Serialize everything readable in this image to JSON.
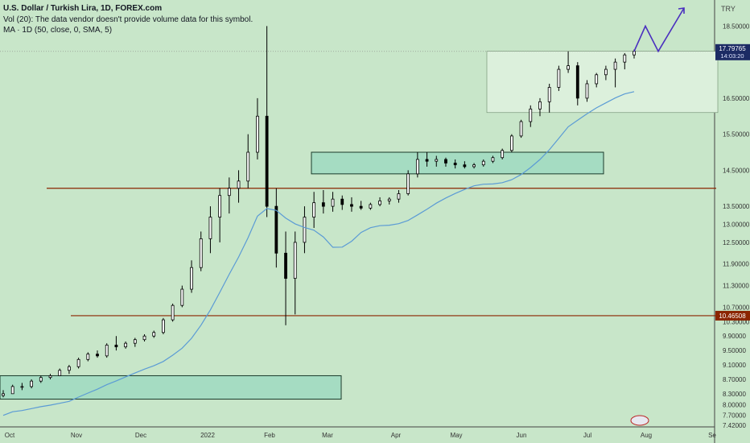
{
  "legend": {
    "title": "U.S. Dollar / Turkish Lira, 1D, FOREX.com",
    "volume": "Vol (20): The data vendor doesn't provide volume data for this symbol.",
    "ma": "MA · 1D (50, close, 0, SMA, 5)"
  },
  "currency": "TRY",
  "colors": {
    "background": "#c8e6c9",
    "candle": "#000000",
    "ma_line": "#5b9bd5",
    "support_line": "#8b2500",
    "box_fill": "#a5dcc2",
    "box_light_fill": "#dcf0dc",
    "projection": "#4a2fbf",
    "price_tag_current": "#1c2b64",
    "price_tag_level": "#8b2500"
  },
  "chart_data": {
    "type": "candlestick",
    "ylim": [
      7.38,
      19.0
    ],
    "x_labels": [
      "Oct",
      "Nov",
      "Dec",
      "2022",
      "Feb",
      "Mar",
      "Apr",
      "May",
      "Jun",
      "Jul",
      "Aug",
      "Se"
    ],
    "y_ticks": [
      "18.50000",
      "16.50000",
      "15.50000",
      "14.50000",
      "13.50000",
      "13.00000",
      "12.50000",
      "11.90000",
      "11.30000",
      "10.70000",
      "10.30000",
      "9.90000",
      "9.50000",
      "9.10000",
      "8.70000",
      "8.30000",
      "8.00000",
      "7.70000",
      "7.42000"
    ],
    "last_price": "17.79765",
    "countdown": "14:03:20",
    "level_price": "10.46508",
    "levels": [
      14.0,
      10.465
    ],
    "ma_label": "MA 50",
    "boxes": [
      {
        "from": "Sep 2021",
        "to": "Feb 2022",
        "low": 8.15,
        "high": 8.8
      },
      {
        "from": "Feb 2022",
        "to": "Jul 2022",
        "low": 14.4,
        "high": 15.0
      },
      {
        "from": "Jun 2022",
        "to": "Aug 2022",
        "low": 16.1,
        "high": 17.8
      }
    ],
    "projection": {
      "points": [
        17.8,
        18.5,
        17.8,
        19.0
      ]
    },
    "candles": [
      [
        8.25,
        8.4,
        8.2,
        8.3
      ],
      [
        8.3,
        8.55,
        8.3,
        8.5
      ],
      [
        8.5,
        8.6,
        8.4,
        8.5
      ],
      [
        8.5,
        8.7,
        8.45,
        8.65
      ],
      [
        8.65,
        8.8,
        8.6,
        8.75
      ],
      [
        8.75,
        8.85,
        8.7,
        8.8
      ],
      [
        8.8,
        9.0,
        8.8,
        8.95
      ],
      [
        8.95,
        9.1,
        8.85,
        9.05
      ],
      [
        9.05,
        9.3,
        9.0,
        9.25
      ],
      [
        9.25,
        9.45,
        9.2,
        9.4
      ],
      [
        9.4,
        9.5,
        9.3,
        9.35
      ],
      [
        9.35,
        9.7,
        9.3,
        9.65
      ],
      [
        9.65,
        9.9,
        9.5,
        9.6
      ],
      [
        9.6,
        9.75,
        9.55,
        9.7
      ],
      [
        9.7,
        9.85,
        9.6,
        9.8
      ],
      [
        9.8,
        9.95,
        9.75,
        9.9
      ],
      [
        9.9,
        10.05,
        9.85,
        10.0
      ],
      [
        10.0,
        10.4,
        9.95,
        10.35
      ],
      [
        10.35,
        10.8,
        10.3,
        10.75
      ],
      [
        10.75,
        11.3,
        10.7,
        11.2
      ],
      [
        11.2,
        12.0,
        11.1,
        11.8
      ],
      [
        11.8,
        12.8,
        11.7,
        12.6
      ],
      [
        12.6,
        13.5,
        12.2,
        13.2
      ],
      [
        13.2,
        14.0,
        12.5,
        13.8
      ],
      [
        13.8,
        14.3,
        13.3,
        14.0
      ],
      [
        14.0,
        14.5,
        13.6,
        14.2
      ],
      [
        14.2,
        15.5,
        14.0,
        15.0
      ],
      [
        15.0,
        16.5,
        14.8,
        16.0
      ],
      [
        16.0,
        18.5,
        13.2,
        13.5
      ],
      [
        13.5,
        14.0,
        11.8,
        12.2
      ],
      [
        12.2,
        12.8,
        10.2,
        11.5
      ],
      [
        11.5,
        12.8,
        10.5,
        12.5
      ],
      [
        12.5,
        13.5,
        12.2,
        13.2
      ],
      [
        13.2,
        13.9,
        12.9,
        13.6
      ],
      [
        13.6,
        13.95,
        13.3,
        13.5
      ],
      [
        13.5,
        13.9,
        13.35,
        13.7
      ],
      [
        13.7,
        13.8,
        13.4,
        13.55
      ],
      [
        13.55,
        13.75,
        13.35,
        13.5
      ],
      [
        13.5,
        13.65,
        13.4,
        13.45
      ],
      [
        13.45,
        13.6,
        13.4,
        13.55
      ],
      [
        13.55,
        13.75,
        13.5,
        13.65
      ],
      [
        13.65,
        13.75,
        13.55,
        13.7
      ],
      [
        13.7,
        13.95,
        13.6,
        13.85
      ],
      [
        13.85,
        14.5,
        13.8,
        14.4
      ],
      [
        14.4,
        15.0,
        14.3,
        14.8
      ],
      [
        14.8,
        15.0,
        14.6,
        14.75
      ],
      [
        14.75,
        14.9,
        14.6,
        14.8
      ],
      [
        14.8,
        14.85,
        14.6,
        14.7
      ],
      [
        14.7,
        14.8,
        14.55,
        14.65
      ],
      [
        14.65,
        14.75,
        14.55,
        14.6
      ],
      [
        14.6,
        14.7,
        14.55,
        14.65
      ],
      [
        14.65,
        14.8,
        14.6,
        14.75
      ],
      [
        14.75,
        14.9,
        14.7,
        14.85
      ],
      [
        14.85,
        15.1,
        14.8,
        15.05
      ],
      [
        15.05,
        15.5,
        15.0,
        15.45
      ],
      [
        15.45,
        15.9,
        15.4,
        15.85
      ],
      [
        15.85,
        16.3,
        15.7,
        16.2
      ],
      [
        16.2,
        16.5,
        16.0,
        16.4
      ],
      [
        16.4,
        16.9,
        16.1,
        16.8
      ],
      [
        16.8,
        17.4,
        16.7,
        17.3
      ],
      [
        17.3,
        17.8,
        17.2,
        17.4
      ],
      [
        17.4,
        17.5,
        16.3,
        16.5
      ],
      [
        16.5,
        17.0,
        16.4,
        16.9
      ],
      [
        16.9,
        17.2,
        16.8,
        17.15
      ],
      [
        17.15,
        17.4,
        17.0,
        17.3
      ],
      [
        17.3,
        17.6,
        16.8,
        17.5
      ],
      [
        17.5,
        17.75,
        17.3,
        17.7
      ],
      [
        17.7,
        17.85,
        17.6,
        17.8
      ]
    ]
  }
}
